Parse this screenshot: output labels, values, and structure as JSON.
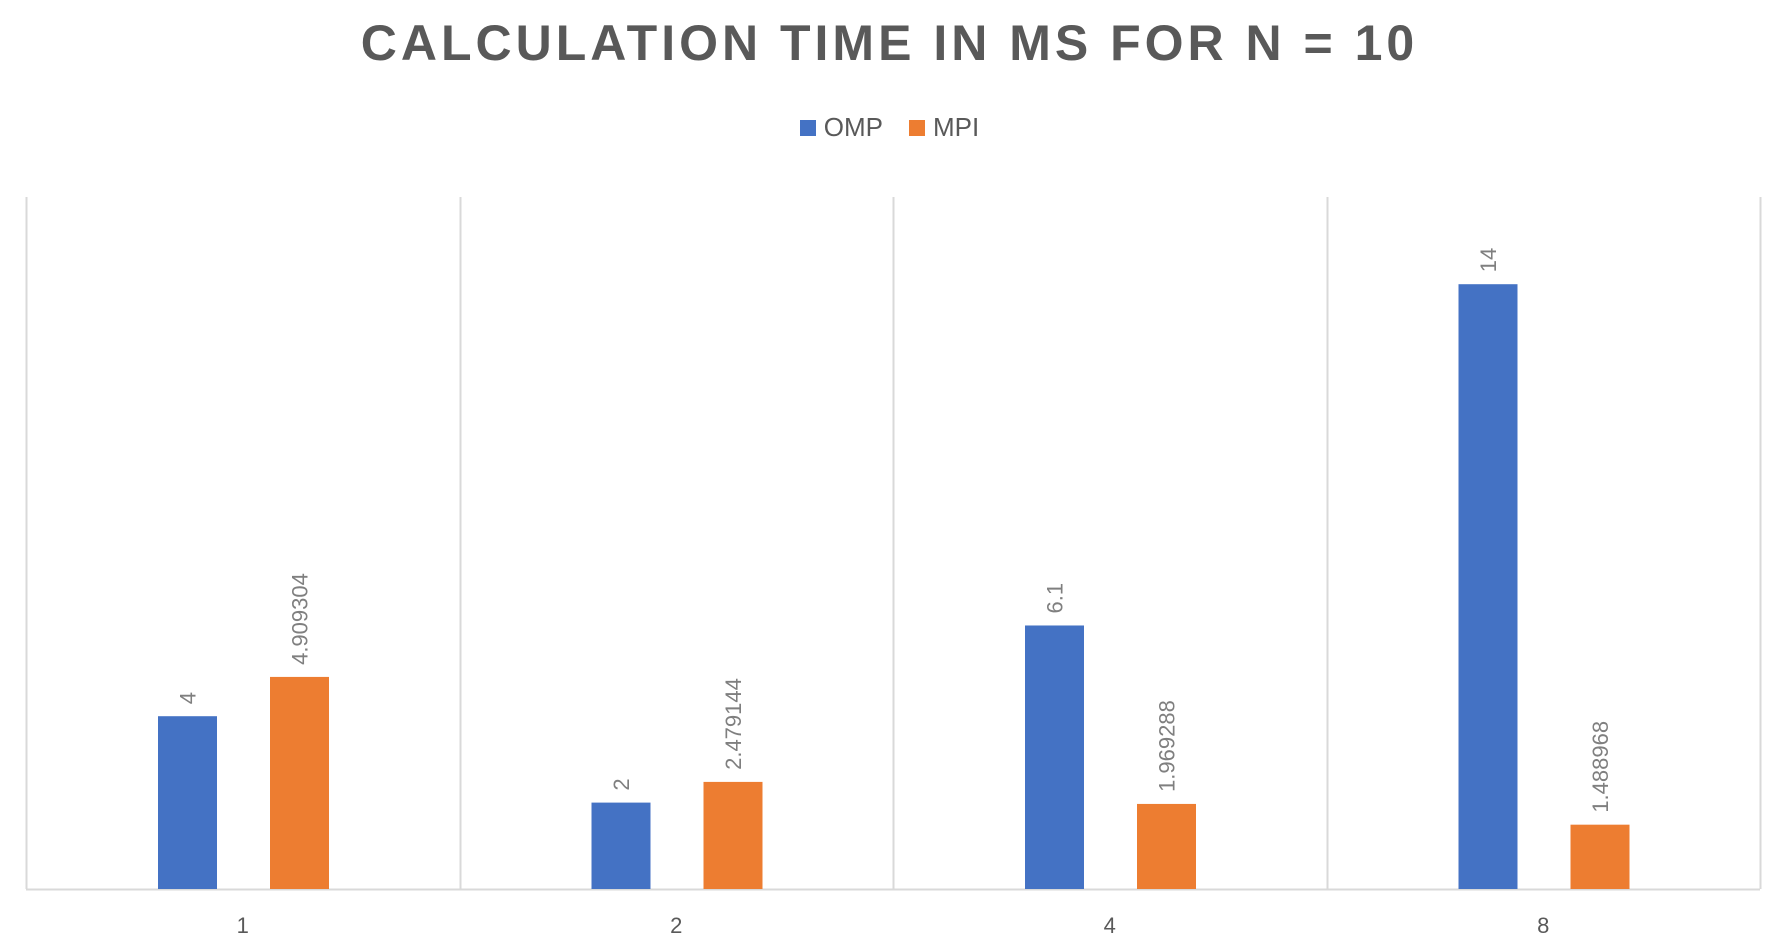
{
  "chart_data": {
    "type": "bar",
    "title": "CALCULATION TIME IN MS FOR N = 10",
    "xlabel": "",
    "ylabel": "",
    "categories": [
      "1",
      "2",
      "4",
      "8"
    ],
    "series": [
      {
        "name": "OMP",
        "color": "#4472C4",
        "values": [
          4,
          2,
          6.1,
          14
        ],
        "labels": [
          "4",
          "2",
          "6.1",
          "14"
        ]
      },
      {
        "name": "MPI",
        "color": "#ED7D31",
        "values": [
          4.909304,
          2.479144,
          1.969288,
          1.488968
        ],
        "labels": [
          "4.909304",
          "2.479144",
          "1.969288",
          "1.488968"
        ]
      }
    ],
    "ylim": [
      0,
      16
    ],
    "grid": "vertical category separators",
    "legend": "top-center",
    "data_labels": "rotated vertical above bars"
  }
}
